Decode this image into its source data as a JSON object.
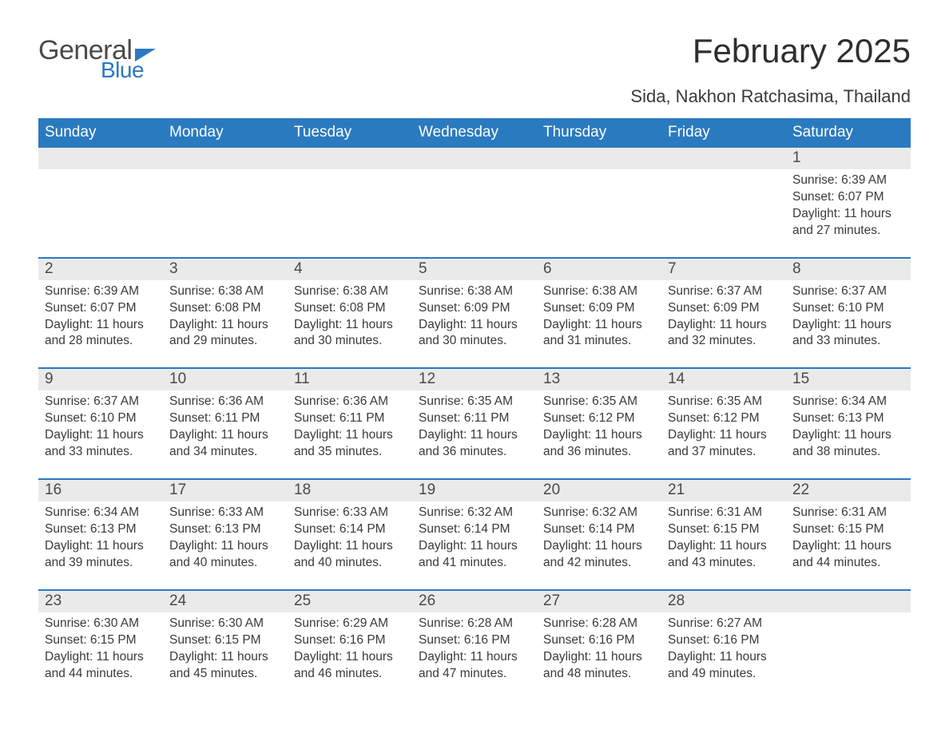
{
  "logo": {
    "line1": "General",
    "line2": "Blue"
  },
  "title": "February 2025",
  "subtitle": "Sida, Nakhon Ratchasima, Thailand",
  "colors": {
    "header_bg": "#2a7ac0",
    "daynum_bg": "#eaeaea",
    "text": "#3a3a3a",
    "title_text": "#2e2e2e",
    "logo_text": "#4a4a4a",
    "logo_blue": "#2a7ac0",
    "background": "#ffffff"
  },
  "typography": {
    "title_fontsize": 42,
    "subtitle_fontsize": 22,
    "weekday_fontsize": 19,
    "daynum_fontsize": 19,
    "body_fontsize": 15.5
  },
  "weekdays": [
    "Sunday",
    "Monday",
    "Tuesday",
    "Wednesday",
    "Thursday",
    "Friday",
    "Saturday"
  ],
  "weeks": [
    [
      null,
      null,
      null,
      null,
      null,
      null,
      {
        "n": "1",
        "sunrise": "6:39 AM",
        "sunset": "6:07 PM",
        "daylight": "11 hours and 27 minutes."
      }
    ],
    [
      {
        "n": "2",
        "sunrise": "6:39 AM",
        "sunset": "6:07 PM",
        "daylight": "11 hours and 28 minutes."
      },
      {
        "n": "3",
        "sunrise": "6:38 AM",
        "sunset": "6:08 PM",
        "daylight": "11 hours and 29 minutes."
      },
      {
        "n": "4",
        "sunrise": "6:38 AM",
        "sunset": "6:08 PM",
        "daylight": "11 hours and 30 minutes."
      },
      {
        "n": "5",
        "sunrise": "6:38 AM",
        "sunset": "6:09 PM",
        "daylight": "11 hours and 30 minutes."
      },
      {
        "n": "6",
        "sunrise": "6:38 AM",
        "sunset": "6:09 PM",
        "daylight": "11 hours and 31 minutes."
      },
      {
        "n": "7",
        "sunrise": "6:37 AM",
        "sunset": "6:09 PM",
        "daylight": "11 hours and 32 minutes."
      },
      {
        "n": "8",
        "sunrise": "6:37 AM",
        "sunset": "6:10 PM",
        "daylight": "11 hours and 33 minutes."
      }
    ],
    [
      {
        "n": "9",
        "sunrise": "6:37 AM",
        "sunset": "6:10 PM",
        "daylight": "11 hours and 33 minutes."
      },
      {
        "n": "10",
        "sunrise": "6:36 AM",
        "sunset": "6:11 PM",
        "daylight": "11 hours and 34 minutes."
      },
      {
        "n": "11",
        "sunrise": "6:36 AM",
        "sunset": "6:11 PM",
        "daylight": "11 hours and 35 minutes."
      },
      {
        "n": "12",
        "sunrise": "6:35 AM",
        "sunset": "6:11 PM",
        "daylight": "11 hours and 36 minutes."
      },
      {
        "n": "13",
        "sunrise": "6:35 AM",
        "sunset": "6:12 PM",
        "daylight": "11 hours and 36 minutes."
      },
      {
        "n": "14",
        "sunrise": "6:35 AM",
        "sunset": "6:12 PM",
        "daylight": "11 hours and 37 minutes."
      },
      {
        "n": "15",
        "sunrise": "6:34 AM",
        "sunset": "6:13 PM",
        "daylight": "11 hours and 38 minutes."
      }
    ],
    [
      {
        "n": "16",
        "sunrise": "6:34 AM",
        "sunset": "6:13 PM",
        "daylight": "11 hours and 39 minutes."
      },
      {
        "n": "17",
        "sunrise": "6:33 AM",
        "sunset": "6:13 PM",
        "daylight": "11 hours and 40 minutes."
      },
      {
        "n": "18",
        "sunrise": "6:33 AM",
        "sunset": "6:14 PM",
        "daylight": "11 hours and 40 minutes."
      },
      {
        "n": "19",
        "sunrise": "6:32 AM",
        "sunset": "6:14 PM",
        "daylight": "11 hours and 41 minutes."
      },
      {
        "n": "20",
        "sunrise": "6:32 AM",
        "sunset": "6:14 PM",
        "daylight": "11 hours and 42 minutes."
      },
      {
        "n": "21",
        "sunrise": "6:31 AM",
        "sunset": "6:15 PM",
        "daylight": "11 hours and 43 minutes."
      },
      {
        "n": "22",
        "sunrise": "6:31 AM",
        "sunset": "6:15 PM",
        "daylight": "11 hours and 44 minutes."
      }
    ],
    [
      {
        "n": "23",
        "sunrise": "6:30 AM",
        "sunset": "6:15 PM",
        "daylight": "11 hours and 44 minutes."
      },
      {
        "n": "24",
        "sunrise": "6:30 AM",
        "sunset": "6:15 PM",
        "daylight": "11 hours and 45 minutes."
      },
      {
        "n": "25",
        "sunrise": "6:29 AM",
        "sunset": "6:16 PM",
        "daylight": "11 hours and 46 minutes."
      },
      {
        "n": "26",
        "sunrise": "6:28 AM",
        "sunset": "6:16 PM",
        "daylight": "11 hours and 47 minutes."
      },
      {
        "n": "27",
        "sunrise": "6:28 AM",
        "sunset": "6:16 PM",
        "daylight": "11 hours and 48 minutes."
      },
      {
        "n": "28",
        "sunrise": "6:27 AM",
        "sunset": "6:16 PM",
        "daylight": "11 hours and 49 minutes."
      },
      null
    ]
  ],
  "labels": {
    "sunrise": "Sunrise: ",
    "sunset": "Sunset: ",
    "daylight": "Daylight: "
  }
}
